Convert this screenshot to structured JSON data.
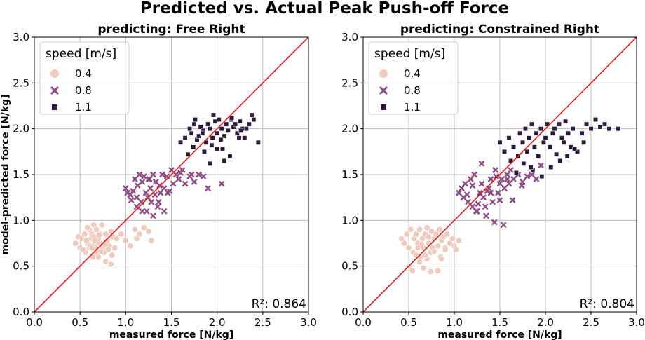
{
  "figure": {
    "title": "Predicted vs. Actual Peak Push-off Force",
    "colors": {
      "s04": "#efcbbd",
      "s08": "#8f4f86",
      "s11": "#2b1a3c",
      "identity": "#e01a1a",
      "grid": "#b0b0b0"
    }
  },
  "chart_data": [
    {
      "type": "scatter",
      "title": "predicting: Free Right",
      "xlabel": "measured force [N/kg]",
      "ylabel": "model-predicted force [N/kg]",
      "xlim": [
        0.0,
        3.0
      ],
      "ylim": [
        0.0,
        3.0
      ],
      "xticks": [
        "0.0",
        "0.5",
        "1.0",
        "1.5",
        "2.0",
        "2.5",
        "3.0"
      ],
      "yticks": [
        "0.0",
        "0.5",
        "1.0",
        "1.5",
        "2.0",
        "2.5",
        "3.0"
      ],
      "grid": true,
      "legend": {
        "title": "speed [m/s]",
        "placement": "top-left",
        "labels": [
          "0.4",
          "0.8",
          "1.1"
        ]
      },
      "annotation": "R²: 0.864",
      "identity_line": [
        0,
        3
      ],
      "series": [
        {
          "name": "0.4",
          "marker": "circle",
          "x": [
            0.45,
            0.5,
            0.52,
            0.55,
            0.56,
            0.58,
            0.6,
            0.6,
            0.62,
            0.63,
            0.64,
            0.65,
            0.66,
            0.67,
            0.68,
            0.68,
            0.7,
            0.7,
            0.72,
            0.72,
            0.74,
            0.75,
            0.76,
            0.78,
            0.78,
            0.8,
            0.82,
            0.84,
            0.85,
            0.86,
            0.88,
            0.9,
            0.95,
            1.0,
            1.05,
            1.1,
            1.12,
            1.15,
            1.2,
            1.25,
            1.28,
            0.48,
            0.53,
            0.57,
            0.61,
            0.65,
            0.69,
            0.73,
            0.77,
            0.81,
            0.84,
            0.58,
            0.63,
            0.71,
            0.66
          ],
          "y": [
            0.75,
            0.7,
            0.8,
            0.85,
            0.65,
            0.75,
            0.9,
            0.7,
            0.8,
            0.85,
            0.6,
            0.95,
            0.75,
            0.7,
            0.9,
            0.65,
            0.8,
            0.6,
            0.85,
            0.75,
            0.95,
            0.7,
            0.65,
            0.85,
            0.55,
            0.78,
            0.72,
            0.88,
            0.62,
            0.82,
            0.7,
            0.8,
            0.85,
            0.78,
            0.72,
            0.9,
            0.8,
            0.85,
            0.92,
            0.88,
            0.78,
            0.82,
            0.68,
            0.78,
            0.72,
            0.82,
            0.76,
            0.66,
            0.74,
            0.68,
            0.52,
            0.92,
            0.7,
            0.84,
            0.78
          ]
        },
        {
          "name": "0.8",
          "marker": "x",
          "x": [
            1.0,
            1.02,
            1.05,
            1.08,
            1.1,
            1.12,
            1.13,
            1.15,
            1.17,
            1.18,
            1.2,
            1.22,
            1.23,
            1.25,
            1.27,
            1.28,
            1.3,
            1.32,
            1.33,
            1.35,
            1.37,
            1.38,
            1.4,
            1.42,
            1.45,
            1.48,
            1.5,
            1.52,
            1.55,
            1.58,
            1.6,
            1.65,
            1.7,
            1.75,
            1.8,
            1.85,
            1.9,
            2.05,
            1.12,
            1.18,
            1.24,
            1.3,
            1.36,
            1.42,
            1.06,
            1.26,
            1.46,
            1.62,
            1.72
          ],
          "y": [
            1.35,
            1.3,
            1.28,
            1.32,
            1.45,
            1.25,
            1.38,
            1.5,
            1.2,
            1.42,
            1.48,
            1.3,
            1.1,
            1.45,
            1.35,
            1.2,
            1.5,
            1.28,
            1.42,
            1.15,
            1.38,
            1.3,
            1.5,
            1.35,
            1.48,
            1.32,
            1.55,
            1.4,
            1.5,
            1.45,
            1.52,
            1.4,
            1.48,
            1.42,
            1.5,
            1.48,
            1.35,
            1.4,
            1.15,
            1.1,
            1.25,
            1.05,
            1.2,
            1.1,
            1.22,
            1.45,
            1.3,
            1.55,
            1.5
          ]
        },
        {
          "name": "1.1",
          "marker": "square",
          "x": [
            1.6,
            1.65,
            1.7,
            1.72,
            1.75,
            1.78,
            1.8,
            1.82,
            1.85,
            1.88,
            1.9,
            1.92,
            1.95,
            1.98,
            2.0,
            2.02,
            2.05,
            2.08,
            2.1,
            2.12,
            2.15,
            2.18,
            2.2,
            2.22,
            2.25,
            2.28,
            2.3,
            2.35,
            2.4,
            2.45,
            1.68,
            1.74,
            1.86,
            1.94,
            2.06,
            2.14,
            2.24,
            2.32,
            2.38,
            1.76,
            1.84,
            1.96,
            2.04,
            2.16,
            2.26,
            2.08,
            1.92,
            2.0
          ],
          "y": [
            1.85,
            1.9,
            2.0,
            1.95,
            2.05,
            1.88,
            1.92,
            2.02,
            1.98,
            1.85,
            2.05,
            2.0,
            1.9,
            2.08,
            1.95,
            2.1,
            2.0,
            1.92,
            2.05,
            1.98,
            2.1,
            2.02,
            2.05,
            1.95,
            2.08,
            2.0,
            1.9,
            2.05,
            2.1,
            1.85,
            1.72,
            1.8,
            1.75,
            1.82,
            1.78,
            1.7,
            1.9,
            2.0,
            2.15,
            2.1,
            1.95,
            2.15,
            1.88,
            2.12,
            1.98,
            1.65,
            1.62,
            1.78
          ]
        }
      ]
    },
    {
      "type": "scatter",
      "title": "predicting: Constrained Right",
      "xlabel": "measured force [N/kg]",
      "ylabel": "",
      "xlim": [
        0.0,
        3.0
      ],
      "ylim": [
        0.0,
        3.0
      ],
      "xticks": [
        "0.0",
        "0.5",
        "1.0",
        "1.5",
        "2.0",
        "2.5",
        "3.0"
      ],
      "yticks": [
        "0.0",
        "0.5",
        "1.0",
        "1.5",
        "2.0",
        "2.5",
        "3.0"
      ],
      "grid": true,
      "legend": {
        "title": "speed [m/s]",
        "placement": "top-left",
        "labels": [
          "0.4",
          "0.8",
          "1.1"
        ]
      },
      "annotation": "R²: 0.804",
      "identity_line": [
        0,
        3
      ],
      "series": [
        {
          "name": "0.4",
          "marker": "circle",
          "x": [
            0.42,
            0.45,
            0.48,
            0.5,
            0.52,
            0.55,
            0.56,
            0.58,
            0.6,
            0.62,
            0.63,
            0.65,
            0.66,
            0.68,
            0.7,
            0.72,
            0.74,
            0.75,
            0.76,
            0.78,
            0.8,
            0.82,
            0.84,
            0.85,
            0.86,
            0.88,
            0.9,
            0.92,
            0.95,
            0.98,
            1.0,
            1.02,
            1.05,
            0.5,
            0.54,
            0.58,
            0.62,
            0.66,
            0.7,
            0.74,
            0.78,
            0.82,
            0.86,
            0.9,
            0.72,
            0.64,
            0.68,
            0.6
          ],
          "y": [
            0.8,
            0.75,
            0.85,
            0.7,
            0.9,
            0.65,
            0.8,
            0.85,
            0.75,
            0.9,
            0.6,
            0.8,
            0.7,
            0.85,
            0.92,
            0.75,
            0.65,
            0.88,
            0.7,
            0.8,
            0.85,
            0.72,
            0.9,
            0.6,
            0.78,
            0.82,
            0.7,
            0.85,
            0.75,
            0.8,
            0.72,
            0.68,
            0.78,
            0.5,
            0.45,
            0.62,
            0.55,
            0.48,
            0.58,
            0.44,
            0.66,
            0.45,
            0.58,
            0.68,
            0.82,
            0.74,
            0.62,
            0.7
          ]
        },
        {
          "name": "0.8",
          "marker": "x",
          "x": [
            1.05,
            1.08,
            1.1,
            1.12,
            1.15,
            1.18,
            1.2,
            1.22,
            1.25,
            1.28,
            1.3,
            1.32,
            1.35,
            1.38,
            1.4,
            1.42,
            1.45,
            1.48,
            1.5,
            1.52,
            1.55,
            1.58,
            1.6,
            1.62,
            1.65,
            1.7,
            1.75,
            1.8,
            1.85,
            1.9,
            1.95,
            1.14,
            1.24,
            1.34,
            1.44,
            1.54,
            1.64,
            1.74,
            1.3,
            1.36,
            1.46,
            1.26,
            1.2,
            1.4,
            1.5,
            1.58
          ],
          "y": [
            1.3,
            1.35,
            1.25,
            1.4,
            1.2,
            1.45,
            1.15,
            1.5,
            1.1,
            1.3,
            1.4,
            1.25,
            1.05,
            1.35,
            1.45,
            1.2,
            1.55,
            1.3,
            1.4,
            1.45,
            1.35,
            1.5,
            1.4,
            1.55,
            1.45,
            1.5,
            1.42,
            1.48,
            1.5,
            1.45,
            1.6,
            1.28,
            1.1,
            1.15,
            0.98,
            0.95,
            1.22,
            1.38,
            1.62,
            1.32,
            1.48,
            1.18,
            1.38,
            1.3,
            1.22,
            1.45
          ]
        },
        {
          "name": "1.1",
          "marker": "square",
          "x": [
            1.5,
            1.55,
            1.6,
            1.65,
            1.7,
            1.72,
            1.75,
            1.78,
            1.8,
            1.82,
            1.85,
            1.88,
            1.9,
            1.92,
            1.95,
            1.98,
            2.0,
            2.02,
            2.05,
            2.08,
            2.1,
            2.12,
            2.15,
            2.18,
            2.2,
            2.22,
            2.25,
            2.28,
            2.3,
            2.35,
            2.4,
            2.45,
            2.5,
            2.55,
            2.6,
            2.65,
            2.7,
            2.8,
            1.68,
            1.76,
            1.86,
            1.96,
            2.06,
            2.16,
            2.24,
            2.32,
            2.42,
            1.62,
            1.84
          ],
          "y": [
            1.85,
            1.75,
            1.9,
            1.8,
            1.7,
            1.95,
            1.85,
            2.0,
            1.75,
            1.9,
            2.05,
            1.8,
            1.95,
            1.7,
            2.0,
            1.85,
            1.9,
            2.05,
            1.8,
            1.95,
            2.0,
            1.72,
            2.05,
            1.9,
            1.85,
            2.08,
            1.95,
            1.8,
            2.0,
            1.75,
            1.95,
            2.05,
            2.0,
            2.1,
            2.02,
            2.05,
            2.0,
            2.0,
            1.52,
            1.62,
            1.55,
            1.48,
            1.58,
            1.65,
            1.7,
            1.78,
            1.85,
            1.65,
            1.58
          ]
        }
      ]
    }
  ]
}
